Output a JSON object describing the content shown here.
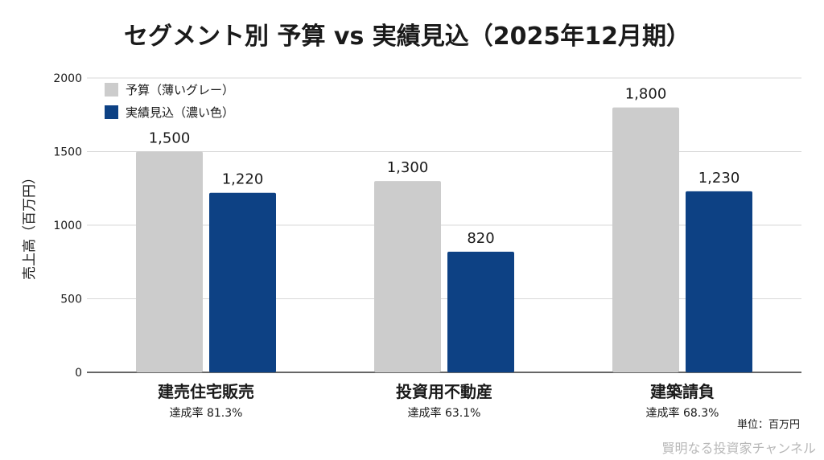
{
  "chart_data": {
    "type": "bar",
    "title": "セグメント別 予算 vs 実績見込（2025年12月期）",
    "xlabel": "",
    "ylabel": "売上高（百万円）",
    "ylim": [
      0,
      2000
    ],
    "yticks": [
      "0",
      "500",
      "1000",
      "1500",
      "2000"
    ],
    "grid": true,
    "legend_position": "top-left",
    "categories": [
      "建売住宅販売",
      "投資用不動産",
      "建築請負"
    ],
    "achievement_rates": [
      "達成率 81.3%",
      "達成率 63.1%",
      "達成率 68.3%"
    ],
    "series": [
      {
        "name": "予算（薄いグレー）",
        "color": "#cccccc",
        "values": [
          1500,
          1300,
          1800
        ],
        "labels": [
          "1,500",
          "1,300",
          "1,800"
        ]
      },
      {
        "name": "実績見込（濃い色）",
        "color": "#0d4184",
        "values": [
          1220,
          820,
          1230
        ],
        "labels": [
          "1,220",
          "820",
          "1,230"
        ]
      }
    ],
    "unit_note": "単位：百万円"
  },
  "watermark": "賢明なる投資家チャンネル",
  "colors": {
    "grid": "#d9d9d9",
    "axis": "#333333"
  }
}
